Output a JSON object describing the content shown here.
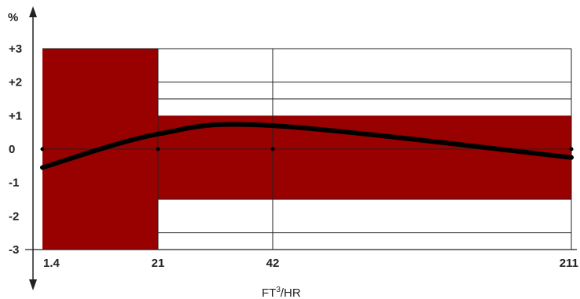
{
  "chart_data": {
    "type": "line",
    "y_unit": "%",
    "x_title": {
      "main": "FT",
      "sup": "3",
      "rest": "/HR"
    },
    "x_ticks": [
      "1.4",
      "21",
      "42",
      "211"
    ],
    "y_ticks": [
      "+3",
      "+2",
      "+1",
      "0",
      "-1",
      "-2",
      "-3"
    ],
    "ylim": [
      -3,
      3
    ],
    "tolerance_bands": [
      {
        "x_from": "1.4",
        "x_to": "21",
        "y_from": -3,
        "y_to": 3
      },
      {
        "x_from": "21",
        "x_to": "211",
        "y_from": -1.5,
        "y_to": 1
      }
    ],
    "series": [
      {
        "points": [
          {
            "x": "1.4",
            "y": -0.55
          },
          {
            "x": "21",
            "y": 0.45
          },
          {
            "x": "42",
            "y": 0.7
          },
          {
            "x": "211",
            "y": -0.25
          }
        ]
      }
    ],
    "grid_lines_y": [
      -2.5,
      -1.5,
      1.5,
      2,
      3
    ],
    "colors": {
      "band": "#990000",
      "curve": "#000000",
      "grid": "#222222"
    }
  }
}
